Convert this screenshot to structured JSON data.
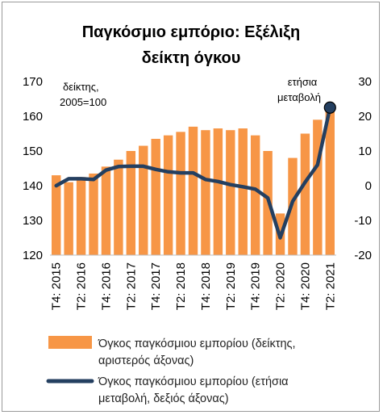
{
  "chart_data": {
    "type": "bar+line",
    "title_lines": [
      "Παγκόσμιο εμπόριο: Εξέλιξη",
      "δείκτη όγκου"
    ],
    "left_axis_note": [
      "δείκτης,",
      "2005=100"
    ],
    "right_axis_note": [
      "ετήσια",
      "μεταβολή"
    ],
    "left_axis": {
      "min": 120,
      "max": 170,
      "ticks": [
        "120",
        "130",
        "140",
        "150",
        "160",
        "170"
      ]
    },
    "right_axis": {
      "min": -20,
      "max": 30,
      "ticks": [
        "-20",
        "-10",
        "0",
        "10",
        "20",
        "30"
      ]
    },
    "x_tick_labels": [
      "T4: 2015",
      "T2: 2016",
      "T4: 2016",
      "T2: 2017",
      "T4: 2017",
      "T2: 2018",
      "T4: 2018",
      "T2: 2019",
      "T4: 2019",
      "T2: 2020",
      "T4: 2020",
      "T2: 2021"
    ],
    "categories": [
      "T4: 2015",
      "T1: 2016",
      "T2: 2016",
      "T3: 2016",
      "T4: 2016",
      "T1: 2017",
      "T2: 2017",
      "T3: 2017",
      "T4: 2017",
      "T1: 2018",
      "T2: 2018",
      "T3: 2018",
      "T4: 2018",
      "T1: 2019",
      "T2: 2019",
      "T3: 2019",
      "T4: 2019",
      "T1: 2020",
      "T2: 2020",
      "T3: 2020",
      "T4: 2020",
      "T1: 2021",
      "T2: 2021"
    ],
    "series": [
      {
        "name": "Όγκος παγκόσμιου εμπορίου (δείκτης, αριστερός άξονας)",
        "kind": "bar",
        "axis": "left",
        "color": "#F79646",
        "values": [
          143,
          141,
          142.5,
          143.5,
          145.5,
          147.5,
          150,
          151.5,
          153.5,
          154.5,
          155.5,
          157,
          156,
          156.5,
          156,
          156.5,
          154.5,
          150,
          132,
          148,
          155,
          159,
          162
        ]
      },
      {
        "name": "Όγκος παγκόσμιου εμπορίου (ετήσια μεταβολή, δεξιός άξονας)",
        "kind": "line",
        "axis": "right",
        "color": "#243F60",
        "values": [
          0,
          2,
          2,
          1.8,
          4.5,
          5.5,
          5.6,
          5.6,
          4.7,
          4,
          3.7,
          3.7,
          1.8,
          1.2,
          0.3,
          -0.3,
          -1,
          -3.5,
          -15,
          -4.5,
          1,
          6,
          22.5
        ]
      }
    ],
    "legend": [
      "Όγκος παγκόσμιου εμπορίου (δείκτης,",
      "αριστερός άξονας)",
      "Όγκος παγκόσμιου εμπορίου (ετήσια",
      "μεταβολή, δεξιός άξονας)"
    ],
    "legend_position": "bottom"
  }
}
